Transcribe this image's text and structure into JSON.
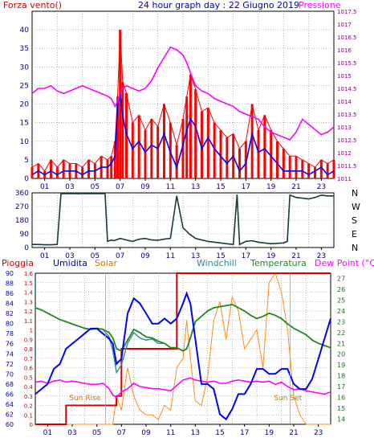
{
  "page": {
    "title": "24 hour graph day : 22 Giugno 2019"
  },
  "colors": {
    "frame": "#000000",
    "grid": "#8c8c8c",
    "wind_bars": "#ff0000",
    "wind_line": "#0000ff",
    "pressure": "#ff00ff",
    "wind_dir": "#1a3a3a",
    "rain": "#d80000",
    "humidity": "#0000ff",
    "solar": "#ff8c1a",
    "windchill": "#2e8b8b",
    "temperature": "#1f8a1f",
    "dewpoint": "#ff00ff",
    "sun_text": "#c87800"
  },
  "chart_data": [
    {
      "type": "line",
      "name": "wind-pressure",
      "title": "24 hour graph day : 22 Giugno 2019",
      "ylabel_left": "Forza vento()",
      "ylabel_right": "Pressione",
      "xticks": [
        "01",
        "03",
        "05",
        "07",
        "09",
        "11",
        "13",
        "15",
        "17",
        "19",
        "21",
        "23"
      ],
      "ylim_left": [
        0,
        45
      ],
      "yticks_left": [
        "0",
        "5",
        "10",
        "15",
        "20",
        "25",
        "30",
        "35",
        "40"
      ],
      "ylim_right": [
        1011,
        1017.5
      ],
      "yticks_right": [
        "1011",
        "1011.5",
        "1012",
        "1012.5",
        "1013",
        "1013.5",
        "1014",
        "1014.5",
        "1015",
        "1015.5",
        "1016",
        "1016.5",
        "1017",
        "1017.5"
      ],
      "grid": true,
      "x": [
        0,
        0.5,
        1,
        1.5,
        2,
        2.5,
        3,
        3.5,
        4,
        4.5,
        5,
        5.5,
        6,
        6.3,
        6.6,
        6.8,
        7,
        7.2,
        7.5,
        8,
        8.5,
        9,
        9.5,
        10,
        10.5,
        11,
        11.5,
        12,
        12.3,
        12.6,
        13,
        13.5,
        14,
        14.5,
        15,
        15.5,
        16,
        16.5,
        17,
        17.5,
        18,
        18.5,
        19,
        19.5,
        20,
        20.5,
        21,
        21.5,
        22,
        22.5,
        23,
        23.5,
        24
      ],
      "series": [
        {
          "name": "gust",
          "values": [
            3,
            4,
            2,
            5,
            3,
            5,
            4,
            4,
            3,
            5,
            4,
            6,
            5,
            6,
            10,
            22,
            40,
            26,
            23,
            15,
            17,
            13,
            16,
            14,
            20,
            15,
            9,
            16,
            22,
            28,
            24,
            18,
            19,
            15,
            13,
            11,
            12,
            8,
            10,
            20,
            13,
            17,
            13,
            10,
            8,
            6,
            6,
            5,
            4,
            3,
            5,
            4,
            5
          ]
        },
        {
          "name": "average",
          "values": [
            1,
            2,
            1,
            2,
            1,
            2,
            2,
            2,
            1,
            2,
            2,
            3,
            3,
            4,
            6,
            20,
            23,
            17,
            12,
            8,
            10,
            7,
            9,
            8,
            12,
            7,
            3,
            9,
            13,
            16,
            14,
            8,
            11,
            8,
            6,
            4,
            6,
            2,
            4,
            12,
            7,
            8,
            6,
            4,
            2,
            2,
            2,
            2,
            1,
            2,
            3,
            1,
            2
          ]
        },
        {
          "name": "pressure",
          "values": [
            1014.3,
            1014.5,
            1014.5,
            1014.6,
            1014.4,
            1014.3,
            1014.4,
            1014.5,
            1014.6,
            1014.5,
            1014.4,
            1014.3,
            1014.2,
            1014.1,
            1013.8,
            1014.0,
            1014.3,
            1014.5,
            1014.6,
            1014.5,
            1014.4,
            1014.5,
            1014.8,
            1015.3,
            1015.7,
            1016.1,
            1016.0,
            1015.8,
            1015.5,
            1015.1,
            1014.6,
            1014.4,
            1014.3,
            1014.1,
            1014.0,
            1013.9,
            1013.8,
            1013.6,
            1013.5,
            1013.4,
            1013.3,
            1013.0,
            1012.8,
            1012.7,
            1012.6,
            1012.5,
            1012.8,
            1013.3,
            1013.1,
            1012.9,
            1012.7,
            1012.8,
            1013.0
          ]
        }
      ]
    },
    {
      "type": "line",
      "name": "wind-direction",
      "xticks": [
        "01",
        "03",
        "05",
        "07",
        "09",
        "11",
        "13",
        "15",
        "17",
        "19",
        "21",
        "23"
      ],
      "ylim": [
        0,
        360
      ],
      "yticks": [
        "0",
        "90",
        "180",
        "270",
        "360"
      ],
      "direction_labels": [
        "N",
        "W",
        "S",
        "E",
        "N"
      ],
      "grid": true,
      "x": [
        0,
        0.5,
        1,
        1.5,
        2,
        2.3,
        3,
        4,
        5,
        5.5,
        5.8,
        6,
        6.3,
        6.5,
        7,
        7.5,
        8,
        8.5,
        9,
        9.5,
        10,
        10.5,
        11,
        11.5,
        12,
        12.5,
        13,
        13.5,
        14,
        15,
        15.5,
        16,
        16.3,
        16.5,
        17,
        17.5,
        18,
        19,
        20,
        20.3,
        20.5,
        21,
        21.5,
        22,
        22.5,
        23,
        23.5,
        24
      ],
      "series": [
        {
          "name": "direction",
          "values": [
            20,
            20,
            18,
            18,
            20,
            355,
            355,
            355,
            355,
            355,
            355,
            40,
            50,
            45,
            60,
            50,
            40,
            55,
            60,
            50,
            48,
            55,
            60,
            340,
            130,
            90,
            60,
            50,
            40,
            30,
            25,
            20,
            350,
            20,
            40,
            45,
            35,
            25,
            30,
            40,
            345,
            330,
            325,
            320,
            330,
            345,
            340,
            340
          ]
        }
      ]
    },
    {
      "type": "line",
      "name": "humidity-temperature",
      "header_labels": [
        "Pioggia",
        "Umidita",
        "Solar",
        "Windchill",
        "Temperatura",
        "Dew Point (°C)"
      ],
      "xticks": [
        "01",
        "03",
        "05",
        "07",
        "09",
        "11",
        "13",
        "15",
        "17",
        "19",
        "21",
        "23"
      ],
      "ylim_rain": [
        0,
        1.6
      ],
      "yticks_rain": [
        "0",
        "0.1",
        "0.2",
        "0.3",
        "0.4",
        "0.5",
        "0.6",
        "0.7",
        "0.8",
        "0.9",
        "1",
        "1.1",
        "1.2",
        "1.3",
        "1.4",
        "1.5",
        "1.6"
      ],
      "ylim_humidity": [
        60,
        90
      ],
      "yticks_humidity": [
        "60",
        "62",
        "64",
        "66",
        "68",
        "70",
        "72",
        "74",
        "76",
        "78",
        "80",
        "82",
        "84",
        "86",
        "88",
        "90"
      ],
      "ylim_temp": [
        13.5,
        27.5
      ],
      "yticks_temp": [
        "14",
        "15",
        "16",
        "17",
        "18",
        "19",
        "20",
        "21",
        "22",
        "23",
        "24",
        "25",
        "26",
        "27"
      ],
      "grid": true,
      "annotations": [
        "Sun Rise",
        "Sun Set"
      ],
      "x": [
        0,
        0.5,
        1,
        1.5,
        2,
        2.5,
        3,
        3.5,
        4,
        4.5,
        5,
        5.5,
        6,
        6.3,
        6.6,
        7,
        7.5,
        8,
        8.5,
        9,
        9.5,
        10,
        10.5,
        11,
        11.5,
        12,
        12.3,
        12.6,
        13,
        13.5,
        14,
        14.5,
        15,
        15.5,
        16,
        16.5,
        17,
        17.5,
        18,
        18.5,
        19,
        19.5,
        20,
        20.5,
        21,
        21.5,
        22,
        22.5,
        23,
        23.5,
        24
      ],
      "series": [
        {
          "name": "rain",
          "values": [
            0,
            0,
            0,
            0,
            0,
            0.2,
            0.2,
            0.2,
            0.2,
            0.2,
            0.2,
            0.2,
            0.2,
            0.2,
            0.3,
            0.8,
            0.8,
            0.8,
            0.8,
            0.8,
            0.8,
            0.8,
            0.8,
            0.8,
            1.6,
            1.6,
            1.6,
            1.6,
            1.6,
            1.6,
            1.6,
            1.6,
            1.6,
            1.6,
            1.6,
            1.6,
            1.6,
            1.6,
            1.6,
            1.6,
            1.6,
            1.6,
            1.6,
            1.6,
            1.6,
            1.6,
            1.6,
            1.6,
            1.6,
            1.6,
            1.6
          ]
        },
        {
          "name": "humidity",
          "values": [
            66,
            67,
            68,
            71,
            72,
            75,
            76,
            77,
            78,
            79,
            79,
            78,
            77,
            76,
            72,
            73,
            82,
            85,
            84,
            82,
            80,
            80,
            81,
            80,
            81,
            84,
            86,
            84,
            77,
            68,
            68,
            67,
            62,
            61,
            63,
            66,
            66,
            68,
            71,
            71,
            70,
            70,
            71,
            71,
            68,
            67,
            67,
            69,
            73,
            77,
            81
          ]
        },
        {
          "name": "temperature",
          "values": [
            24.3,
            24.1,
            23.8,
            23.5,
            23.2,
            23.0,
            22.8,
            22.6,
            22.4,
            22.3,
            22.4,
            22.3,
            22.0,
            21.5,
            20.5,
            20.3,
            21.3,
            22.3,
            22.0,
            21.6,
            21.5,
            21.2,
            21.0,
            20.6,
            20.6,
            20.3,
            20.5,
            21.5,
            23.0,
            23.5,
            24.0,
            24.3,
            24.4,
            24.5,
            24.6,
            24.3,
            24.0,
            23.6,
            23.3,
            23.5,
            23.8,
            23.6,
            23.3,
            22.8,
            22.4,
            22.1,
            21.8,
            21.3,
            21.0,
            20.8,
            20.6
          ]
        },
        {
          "name": "windchill",
          "values": [
            24.3,
            24.1,
            23.8,
            23.5,
            23.2,
            23.0,
            22.8,
            22.6,
            22.4,
            22.3,
            22.4,
            22.3,
            21.6,
            20.3,
            18.3,
            19.0,
            21.0,
            22.0,
            21.5,
            21.3,
            21.4,
            21.0,
            21.0,
            20.6,
            20.6,
            20.3,
            20.5,
            21.5,
            23.0,
            23.5,
            24.0,
            24.3,
            24.4,
            24.5,
            24.6,
            24.3,
            24.0,
            23.6,
            23.3,
            23.5,
            23.8,
            23.6,
            23.3,
            22.8,
            22.4,
            22.1,
            21.8,
            21.3,
            21.0,
            20.8,
            20.6
          ]
        },
        {
          "name": "dewpoint",
          "values": [
            17.4,
            17.5,
            17.3,
            17.5,
            17.6,
            17.4,
            17.5,
            17.4,
            17.3,
            17.2,
            17.2,
            17.3,
            16.8,
            16.2,
            16.0,
            16.5,
            16.8,
            17.3,
            17.0,
            16.9,
            16.8,
            16.8,
            16.7,
            16.6,
            17.1,
            17.6,
            17.7,
            17.8,
            17.6,
            17.5,
            17.4,
            17.5,
            17.3,
            17.3,
            17.5,
            17.6,
            17.5,
            17.4,
            17.5,
            17.4,
            17.5,
            17.2,
            17.4,
            17.0,
            16.7,
            16.8,
            16.6,
            16.5,
            16.4,
            16.3,
            16.5
          ]
        },
        {
          "name": "solar",
          "values": [
            0,
            0,
            0,
            0,
            0,
            0,
            0,
            0,
            0,
            0,
            0,
            0,
            0,
            0,
            0.3,
            0.15,
            0.6,
            0.3,
            0.15,
            0.1,
            0.1,
            0.05,
            0.2,
            0.15,
            0.6,
            0.7,
            1.1,
            0.7,
            0.25,
            0.2,
            0.5,
            1.1,
            1.3,
            0.9,
            1.35,
            1.2,
            0.8,
            0.9,
            1.0,
            0.6,
            1.5,
            1.6,
            1.4,
            1.0,
            0.3,
            0.1,
            0,
            0,
            0,
            0,
            0
          ]
        }
      ]
    }
  ]
}
